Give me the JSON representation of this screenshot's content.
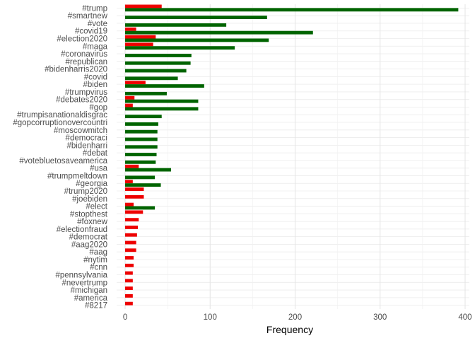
{
  "chart_data": {
    "type": "bar",
    "orientation": "horizontal",
    "categories": [
      "#trump",
      "#smartnew",
      "#vote",
      "#covid19",
      "#election2020",
      "#maga",
      "#coronavirus",
      "#republican",
      "#bidenharris2020",
      "#covid",
      "#biden",
      "#trumpvirus",
      "#debates2020",
      "#gop",
      "#trumpisanationaldisgrac",
      "#gopcorruptionovercountri",
      "#moscowmitch",
      "#democraci",
      "#bidenharri",
      "#debat",
      "#votebluetosaveamerica",
      "#usa",
      "#trumpmeltdown",
      "#georgia",
      "#trump2020",
      "#joebiden",
      "#elect",
      "#stopthest",
      "#foxnew",
      "#electionfraud",
      "#democrat",
      "#aag2020",
      "#aag",
      "#nytim",
      "#cnn",
      "#pennsylvania",
      "#nevertrump",
      "#michigan",
      "#america",
      "#8217"
    ],
    "series": [
      {
        "color": "#ee0000",
        "values": [
          43,
          null,
          null,
          13,
          36,
          33,
          null,
          null,
          null,
          null,
          24,
          null,
          11,
          9,
          null,
          null,
          null,
          null,
          null,
          null,
          null,
          16,
          null,
          9,
          22,
          22,
          10,
          21,
          16,
          15,
          14,
          13,
          13,
          10,
          10,
          9,
          9,
          9,
          9,
          9
        ]
      },
      {
        "color": "#006400",
        "values": [
          392,
          167,
          119,
          221,
          169,
          129,
          78,
          77,
          72,
          62,
          93,
          49,
          86,
          86,
          43,
          39,
          38,
          38,
          38,
          37,
          36,
          54,
          35,
          42,
          null,
          null,
          35,
          null,
          null,
          null,
          null,
          null,
          null,
          null,
          null,
          null,
          null,
          null,
          null,
          null
        ]
      }
    ],
    "xlabel": "Frequency",
    "ylabel": "",
    "xlim": [
      -10,
      405
    ],
    "xticks": [
      0,
      100,
      200,
      300,
      400
    ],
    "grid": true,
    "legend": "none"
  }
}
